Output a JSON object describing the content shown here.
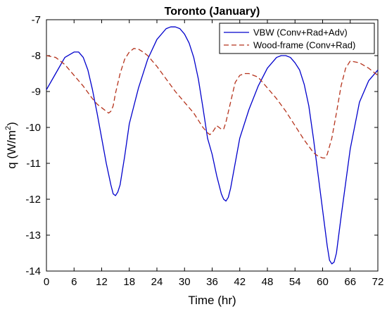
{
  "chart_data": {
    "type": "line",
    "title": "Toronto (January)",
    "xlabel": "Time (hr)",
    "ylabel_main": "q (W/m",
    "ylabel_sup": "2",
    "ylabel_close": ")",
    "xlim": [
      0,
      72
    ],
    "ylim": [
      -14,
      -7
    ],
    "xticks": [
      0,
      6,
      12,
      18,
      24,
      30,
      36,
      42,
      48,
      54,
      60,
      66,
      72
    ],
    "yticks": [
      -14,
      -13,
      -12,
      -11,
      -10,
      -9,
      -8,
      -7
    ],
    "grid": false,
    "legend_position": "top-right",
    "series": [
      {
        "name": "VBW (Conv+Rad+Adv)",
        "color": "#0000cc",
        "dash": "solid",
        "x": [
          0,
          2,
          4,
          6,
          7,
          8,
          9,
          10,
          11,
          12,
          13,
          14,
          14.5,
          15,
          15.5,
          16,
          17,
          18,
          20,
          22,
          24,
          26,
          27,
          28,
          29,
          30,
          31,
          32,
          33,
          34,
          35,
          36,
          37,
          38,
          38.5,
          39,
          39.5,
          40,
          41,
          42,
          44,
          46,
          48,
          50,
          51,
          52,
          53,
          54,
          55,
          56,
          57,
          58,
          59,
          60,
          61,
          61.5,
          62,
          62.5,
          63,
          64,
          66,
          68,
          70,
          72
        ],
        "y": [
          -8.95,
          -8.5,
          -8.05,
          -7.9,
          -7.9,
          -8.05,
          -8.4,
          -8.95,
          -9.6,
          -10.3,
          -11.0,
          -11.6,
          -11.85,
          -11.9,
          -11.8,
          -11.6,
          -10.8,
          -9.9,
          -8.9,
          -8.1,
          -7.55,
          -7.25,
          -7.2,
          -7.2,
          -7.25,
          -7.4,
          -7.65,
          -8.05,
          -8.65,
          -9.45,
          -10.3,
          -10.75,
          -11.35,
          -11.85,
          -12.0,
          -12.05,
          -11.95,
          -11.7,
          -11.0,
          -10.3,
          -9.5,
          -8.85,
          -8.35,
          -8.05,
          -8.0,
          -8.0,
          -8.05,
          -8.2,
          -8.4,
          -8.8,
          -9.4,
          -10.3,
          -11.3,
          -12.3,
          -13.3,
          -13.7,
          -13.8,
          -13.75,
          -13.5,
          -12.5,
          -10.6,
          -9.3,
          -8.7,
          -8.4
        ]
      },
      {
        "name": "Wood-frame (Conv+Rad)",
        "color": "#b5331c",
        "dash": "dashed",
        "x": [
          0,
          2,
          4,
          6,
          8,
          10,
          11,
          12,
          13,
          13.5,
          14,
          14.5,
          15,
          16,
          17,
          18,
          19,
          20,
          21,
          22,
          24,
          26,
          28,
          30,
          32,
          33,
          34,
          35,
          35.5,
          36,
          37,
          38,
          38.5,
          39,
          40,
          41,
          42,
          43,
          44,
          46,
          48,
          50,
          52,
          54,
          56,
          58,
          59,
          60,
          60.5,
          61,
          62,
          63,
          64,
          65,
          66,
          68,
          70,
          72
        ],
        "y": [
          -8.0,
          -8.05,
          -8.25,
          -8.55,
          -8.85,
          -9.2,
          -9.35,
          -9.45,
          -9.55,
          -9.6,
          -9.55,
          -9.4,
          -9.05,
          -8.5,
          -8.1,
          -7.9,
          -7.8,
          -7.82,
          -7.9,
          -8.0,
          -8.3,
          -8.65,
          -9.0,
          -9.3,
          -9.6,
          -9.8,
          -10.0,
          -10.15,
          -10.2,
          -10.15,
          -9.95,
          -10.05,
          -10.05,
          -9.85,
          -9.3,
          -8.75,
          -8.55,
          -8.5,
          -8.5,
          -8.6,
          -8.9,
          -9.2,
          -9.55,
          -9.95,
          -10.35,
          -10.7,
          -10.8,
          -10.85,
          -10.85,
          -10.75,
          -10.3,
          -9.6,
          -8.85,
          -8.35,
          -8.15,
          -8.2,
          -8.35,
          -8.55
        ]
      }
    ]
  }
}
